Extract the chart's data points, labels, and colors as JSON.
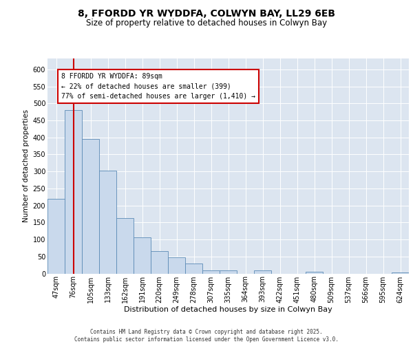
{
  "title": "8, FFORDD YR WYDDFA, COLWYN BAY, LL29 6EB",
  "subtitle": "Size of property relative to detached houses in Colwyn Bay",
  "xlabel": "Distribution of detached houses by size in Colwyn Bay",
  "ylabel": "Number of detached properties",
  "categories": [
    "47sqm",
    "76sqm",
    "105sqm",
    "133sqm",
    "162sqm",
    "191sqm",
    "220sqm",
    "249sqm",
    "278sqm",
    "307sqm",
    "335sqm",
    "364sqm",
    "393sqm",
    "422sqm",
    "451sqm",
    "480sqm",
    "509sqm",
    "537sqm",
    "566sqm",
    "595sqm",
    "624sqm"
  ],
  "values": [
    220,
    480,
    395,
    302,
    163,
    106,
    65,
    47,
    30,
    10,
    10,
    0,
    10,
    0,
    0,
    5,
    0,
    0,
    0,
    0,
    3
  ],
  "bar_color": "#c9d9ec",
  "bar_edge_color": "#5a8ab5",
  "vline_x_index": 1,
  "vline_color": "#cc0000",
  "annotation_text": "8 FFORDD YR WYDDFA: 89sqm\n← 22% of detached houses are smaller (399)\n77% of semi-detached houses are larger (1,410) →",
  "annotation_box_facecolor": "#ffffff",
  "annotation_box_edgecolor": "#cc0000",
  "ylim": [
    0,
    632
  ],
  "yticks": [
    0,
    50,
    100,
    150,
    200,
    250,
    300,
    350,
    400,
    450,
    500,
    550,
    600
  ],
  "plot_bg_color": "#dce5f0",
  "footer_line1": "Contains HM Land Registry data © Crown copyright and database right 2025.",
  "footer_line2": "Contains public sector information licensed under the Open Government Licence v3.0.",
  "title_fontsize": 10,
  "subtitle_fontsize": 8.5,
  "xlabel_fontsize": 8,
  "ylabel_fontsize": 7.5,
  "tick_fontsize": 7,
  "annotation_fontsize": 7,
  "footer_fontsize": 5.5
}
